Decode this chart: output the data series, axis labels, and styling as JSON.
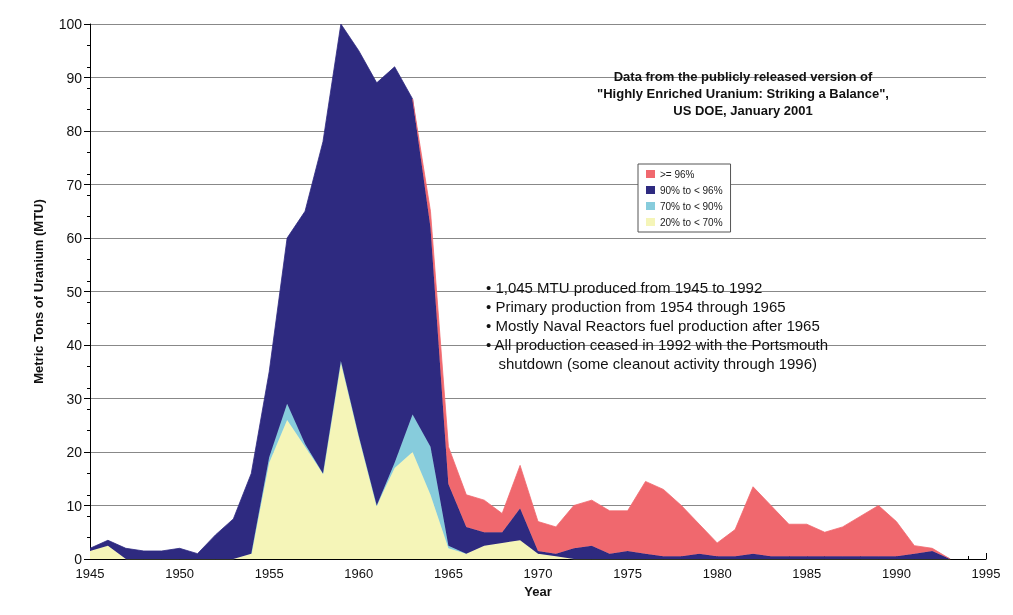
{
  "chart_data": {
    "type": "area",
    "stacked": true,
    "title": "Data from the publicly released version of\n\"Highly Enriched Uranium: Striking a Balance\",\nUS DOE, January 2001",
    "xlabel": "Year",
    "ylabel": "Metric Tons of Uranium (MTU)",
    "x": [
      1945,
      1946,
      1947,
      1948,
      1949,
      1950,
      1951,
      1952,
      1953,
      1954,
      1955,
      1956,
      1957,
      1958,
      1959,
      1960,
      1961,
      1962,
      1963,
      1964,
      1965,
      1966,
      1967,
      1968,
      1969,
      1970,
      1971,
      1972,
      1973,
      1974,
      1975,
      1976,
      1977,
      1978,
      1979,
      1980,
      1981,
      1982,
      1983,
      1984,
      1985,
      1986,
      1987,
      1988,
      1989,
      1990,
      1991,
      1992,
      1993
    ],
    "series": [
      {
        "name": "20% to < 70%",
        "color": "#f5f5b8",
        "values": [
          1.5,
          2.5,
          0,
          0,
          0,
          0,
          0,
          0,
          0,
          1,
          18,
          26,
          21,
          16,
          37,
          23,
          10,
          17,
          20,
          12,
          2,
          1,
          2.5,
          3,
          3.5,
          1,
          0.5,
          0,
          0,
          0,
          0,
          0,
          0,
          0,
          0,
          0,
          0,
          0,
          0,
          0,
          0,
          0,
          0,
          0,
          0,
          0,
          0,
          0,
          0
        ]
      },
      {
        "name": "70% to < 90%",
        "color": "#87ccdc",
        "values": [
          null,
          null,
          null,
          null,
          null,
          null,
          null,
          null,
          null,
          0,
          1,
          3,
          0.5,
          0,
          0,
          0,
          0,
          1,
          7,
          9,
          0.5,
          0,
          null,
          null,
          null,
          null,
          null,
          null,
          null,
          null,
          null,
          null,
          null,
          null,
          null,
          null,
          null,
          null,
          null,
          null,
          null,
          null,
          null,
          null,
          null,
          null,
          null,
          null,
          null
        ]
      },
      {
        "name": "90% to < 96%",
        "color": "#2e2a80",
        "values": [
          0.5,
          1,
          2,
          1.5,
          1.5,
          2,
          1,
          4.5,
          7.5,
          15,
          16,
          31,
          43.5,
          62,
          63,
          72,
          79,
          74,
          59,
          41,
          11.5,
          5,
          2.5,
          2,
          6,
          0.5,
          0.5,
          2,
          2.5,
          1,
          1.5,
          1,
          0.5,
          0.5,
          1,
          0.5,
          0.5,
          1,
          0.5,
          0.5,
          0.5,
          0.5,
          0.5,
          0.5,
          0.5,
          0.5,
          1,
          1.5,
          0
        ]
      },
      {
        "name": ">= 96%",
        "color": "#f0686e",
        "values": [
          null,
          null,
          null,
          null,
          null,
          null,
          null,
          null,
          null,
          null,
          null,
          null,
          null,
          null,
          null,
          null,
          null,
          null,
          0,
          3,
          7,
          6,
          6,
          3.5,
          8,
          5.5,
          5,
          8,
          8.5,
          8,
          7.5,
          13.5,
          12.5,
          9.5,
          5.5,
          2.5,
          5,
          12.5,
          9.5,
          6,
          6,
          4.5,
          5.5,
          7.5,
          9.5,
          6.5,
          1.5,
          0.5,
          0
        ]
      }
    ],
    "xlim": [
      1945,
      1995
    ],
    "xticks": [
      1945,
      1950,
      1955,
      1960,
      1965,
      1970,
      1975,
      1980,
      1985,
      1990,
      1995
    ],
    "ylim": [
      0,
      100
    ],
    "yticks": [
      0,
      10,
      20,
      30,
      40,
      50,
      60,
      70,
      80,
      90,
      100
    ],
    "grid": "y",
    "legend": "top right",
    "marker": "none",
    "annotations": [
      "• 1,045 MTU produced from 1945 to 1992\n• Primary production from 1954 through 1965\n• Mostly Naval Reactors fuel production after 1965\n• All production ceased in 1992 with the Portsmouth\n   shutdown (some cleanout activity through 1996)"
    ]
  }
}
